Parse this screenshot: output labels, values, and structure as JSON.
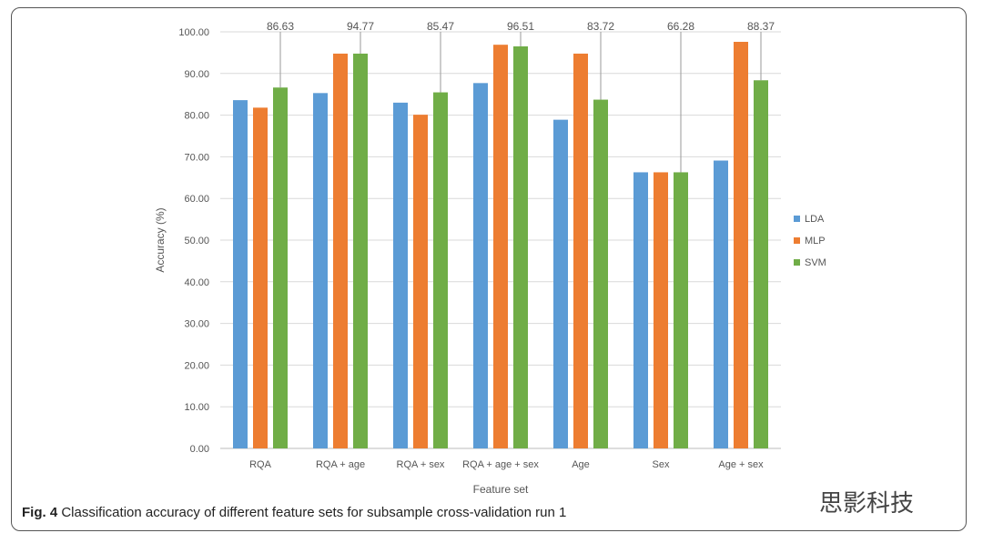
{
  "chart_data": {
    "type": "bar",
    "title": "",
    "xlabel": "Feature set",
    "ylabel": "Accuracy (%)",
    "ylim": [
      0,
      100
    ],
    "yticks": [
      "0.00",
      "10.00",
      "20.00",
      "30.00",
      "40.00",
      "50.00",
      "60.00",
      "70.00",
      "80.00",
      "90.00",
      "100.00"
    ],
    "grid": true,
    "legend_position": "right",
    "categories": [
      "RQA",
      "RQA + age",
      "RQA + sex",
      "RQA + age + sex",
      "Age",
      "Sex",
      "Age + sex"
    ],
    "series": [
      {
        "name": "LDA",
        "color": "#5b9bd5",
        "values": [
          83.6,
          85.3,
          83.0,
          87.7,
          78.9,
          66.28,
          69.1
        ]
      },
      {
        "name": "MLP",
        "color": "#ed7d31",
        "values": [
          81.8,
          94.77,
          80.1,
          96.9,
          94.77,
          66.28,
          97.6
        ]
      },
      {
        "name": "SVM",
        "color": "#70ad47",
        "values": [
          86.63,
          94.77,
          85.47,
          96.51,
          83.72,
          66.28,
          88.37
        ]
      }
    ],
    "annotations": [
      "86.63",
      "94.77",
      "85.47",
      "96.51",
      "83.72",
      "66.28",
      "88.37"
    ]
  },
  "caption": {
    "label": "Fig. 4",
    "text": " Classification accuracy of different feature sets for subsample cross-validation run 1"
  },
  "watermark": "思影科技"
}
